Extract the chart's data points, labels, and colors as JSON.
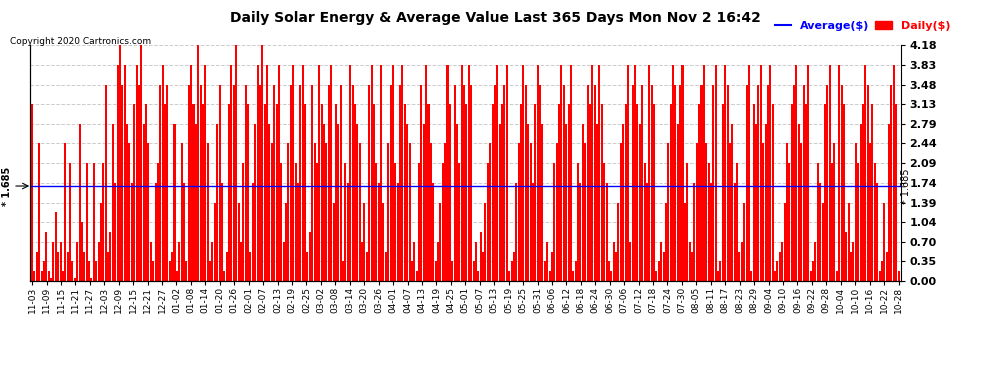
{
  "title": "Daily Solar Energy & Average Value Last 365 Days Mon Nov 2 16:42",
  "copyright": "Copyright 2020 Cartronics.com",
  "average_value": 1.685,
  "bar_color": "#ff0000",
  "average_color": "#0000ff",
  "background_color": "#ffffff",
  "grid_color": "#cccccc",
  "ylim": [
    0.0,
    4.18
  ],
  "yticks": [
    0.0,
    0.35,
    0.7,
    1.04,
    1.39,
    1.74,
    2.09,
    2.44,
    2.79,
    3.13,
    3.48,
    3.83,
    4.18
  ],
  "legend_average": "Average($)",
  "legend_daily": "Daily($)",
  "xtick_labels": [
    "11-03",
    "11-09",
    "11-15",
    "11-21",
    "11-27",
    "12-03",
    "12-09",
    "12-15",
    "12-21",
    "12-27",
    "01-02",
    "01-08",
    "01-14",
    "01-20",
    "01-26",
    "02-01",
    "02-07",
    "02-13",
    "02-19",
    "02-25",
    "03-02",
    "03-08",
    "03-14",
    "03-20",
    "03-26",
    "04-01",
    "04-07",
    "04-13",
    "04-19",
    "04-25",
    "05-01",
    "05-07",
    "05-13",
    "05-19",
    "05-25",
    "05-31",
    "06-06",
    "06-12",
    "06-18",
    "06-24",
    "06-30",
    "07-06",
    "07-12",
    "07-18",
    "07-24",
    "07-30",
    "08-05",
    "08-11",
    "08-17",
    "08-23",
    "08-29",
    "09-04",
    "09-10",
    "09-16",
    "09-22",
    "09-28",
    "10-04",
    "10-10",
    "10-16",
    "10-22",
    "10-28"
  ],
  "bar_values": [
    3.13,
    0.18,
    0.52,
    2.44,
    0.18,
    0.35,
    0.87,
    0.18,
    0.05,
    0.7,
    1.22,
    0.52,
    0.7,
    0.18,
    2.44,
    0.52,
    2.09,
    0.35,
    0.05,
    0.7,
    2.79,
    1.04,
    0.52,
    2.09,
    0.35,
    0.05,
    2.09,
    0.35,
    0.7,
    1.39,
    2.09,
    3.48,
    0.52,
    0.87,
    2.79,
    1.74,
    3.83,
    4.18,
    3.48,
    3.83,
    2.79,
    2.44,
    1.74,
    3.13,
    3.83,
    3.48,
    4.18,
    2.79,
    3.13,
    2.44,
    0.7,
    0.35,
    1.74,
    2.09,
    3.48,
    3.83,
    3.13,
    3.48,
    0.35,
    0.52,
    2.79,
    0.18,
    0.7,
    2.44,
    1.74,
    0.35,
    3.48,
    3.83,
    3.13,
    2.79,
    4.18,
    3.48,
    3.13,
    3.83,
    2.44,
    0.35,
    0.7,
    1.39,
    2.79,
    3.48,
    1.74,
    0.18,
    0.52,
    3.13,
    3.83,
    3.48,
    4.18,
    1.39,
    0.7,
    2.09,
    3.48,
    3.13,
    0.52,
    1.74,
    2.79,
    3.83,
    3.48,
    4.18,
    3.13,
    3.83,
    2.79,
    2.44,
    3.48,
    3.13,
    3.83,
    2.09,
    0.7,
    1.39,
    2.44,
    3.48,
    3.83,
    2.09,
    1.74,
    3.48,
    3.83,
    3.13,
    0.52,
    0.87,
    3.48,
    2.44,
    2.09,
    3.83,
    3.13,
    2.79,
    2.44,
    3.48,
    3.83,
    1.39,
    3.13,
    2.79,
    3.48,
    0.35,
    2.09,
    1.74,
    3.83,
    3.48,
    3.13,
    2.79,
    2.44,
    0.7,
    1.39,
    0.52,
    3.48,
    3.83,
    3.13,
    2.09,
    1.74,
    3.83,
    1.39,
    0.52,
    2.44,
    3.48,
    3.83,
    2.09,
    1.74,
    3.48,
    3.83,
    3.13,
    2.79,
    2.44,
    0.35,
    0.7,
    0.18,
    2.09,
    3.48,
    2.79,
    3.83,
    3.13,
    2.44,
    1.74,
    0.35,
    0.7,
    1.39,
    2.09,
    2.44,
    3.83,
    3.13,
    0.35,
    3.48,
    2.79,
    2.09,
    3.83,
    3.48,
    3.13,
    3.83,
    3.48,
    0.35,
    0.7,
    0.18,
    0.87,
    0.52,
    1.39,
    2.09,
    2.44,
    3.13,
    3.48,
    3.83,
    2.79,
    3.13,
    3.48,
    3.83,
    0.18,
    0.35,
    0.52,
    1.74,
    2.44,
    3.13,
    3.83,
    3.48,
    2.79,
    2.44,
    1.74,
    3.13,
    3.83,
    3.48,
    2.79,
    0.35,
    0.7,
    0.18,
    0.52,
    2.09,
    2.44,
    3.13,
    3.83,
    3.48,
    2.79,
    3.13,
    3.83,
    0.18,
    0.35,
    2.09,
    1.74,
    2.79,
    2.44,
    3.48,
    3.13,
    3.83,
    3.48,
    2.79,
    3.83,
    3.13,
    2.09,
    1.74,
    0.35,
    0.18,
    0.7,
    0.52,
    1.39,
    2.44,
    2.79,
    3.13,
    3.83,
    0.7,
    3.48,
    3.83,
    3.13,
    2.79,
    3.48,
    2.09,
    1.74,
    3.83,
    3.48,
    3.13,
    0.18,
    0.35,
    0.7,
    0.52,
    1.39,
    2.44,
    3.13,
    3.83,
    3.48,
    2.79,
    3.48,
    3.83,
    1.39,
    2.09,
    0.7,
    0.52,
    1.74,
    2.44,
    3.13,
    3.48,
    3.83,
    2.44,
    2.09,
    1.74,
    3.48,
    3.83,
    0.18,
    0.35,
    3.13,
    3.83,
    3.48,
    2.44,
    2.79,
    1.74,
    2.09,
    0.52,
    0.7,
    1.39,
    3.48,
    3.83,
    0.18,
    3.13,
    2.79,
    3.48,
    3.83,
    2.44,
    2.79,
    3.48,
    3.83,
    3.13,
    0.18,
    0.35,
    0.52,
    0.7,
    1.39,
    2.44,
    2.09,
    3.13,
    3.48,
    3.83,
    2.79,
    2.44,
    3.48,
    3.13,
    3.83,
    0.18,
    0.35,
    0.7,
    2.09,
    1.74,
    1.39,
    3.13,
    3.48,
    3.83,
    2.09,
    2.44,
    0.18,
    3.83,
    3.48,
    3.13,
    0.87,
    1.39,
    0.52,
    0.7,
    2.44,
    2.09,
    2.79,
    3.13,
    3.83,
    3.48,
    2.44,
    3.13,
    2.09,
    1.74,
    0.18,
    0.35,
    1.39,
    0.52,
    2.79,
    3.48,
    3.83,
    3.13,
    0.18
  ]
}
